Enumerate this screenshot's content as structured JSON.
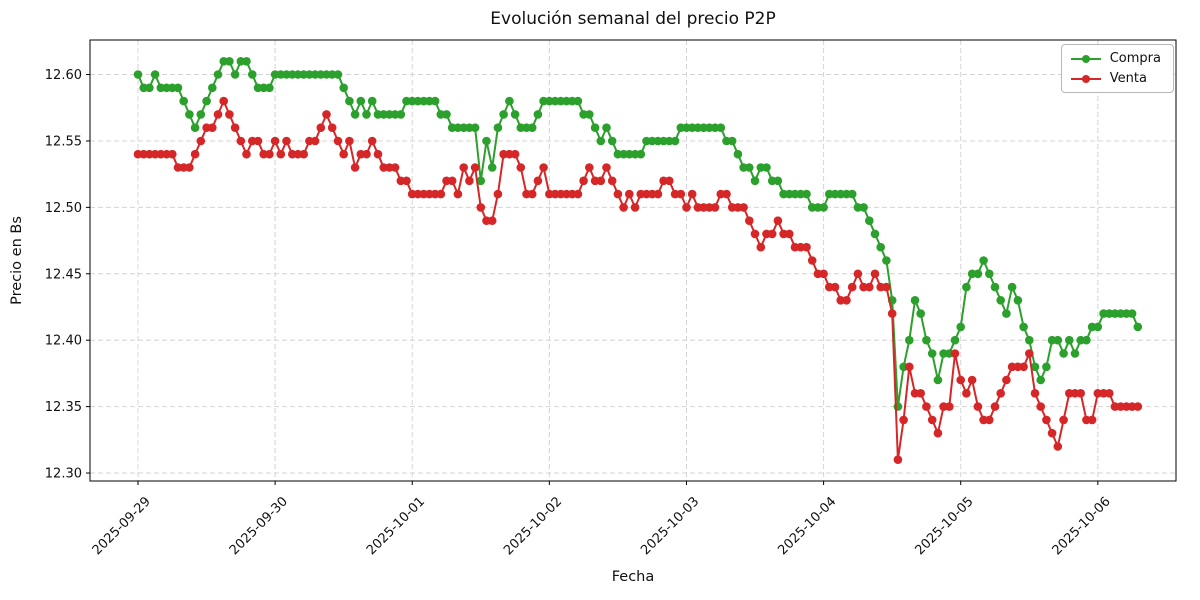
{
  "chart_data": {
    "type": "line",
    "title": "Evolución semanal del precio P2P",
    "xlabel": "Fecha",
    "ylabel": "Precio en Bs",
    "grid": true,
    "grid_style": "dashed",
    "legend_position": "upper right",
    "marker": "o",
    "x_tick_labels": [
      "2025-09-29",
      "2025-09-30",
      "2025-10-01",
      "2025-10-02",
      "2025-10-03",
      "2025-10-04",
      "2025-10-05",
      "2025-10-06"
    ],
    "x_start": "2025-09-29 00:00",
    "x_interval_hours": 1,
    "xlim_days": [
      -0.35,
      7.57
    ],
    "ylim": [
      12.294,
      12.626
    ],
    "yticks": [
      12.3,
      12.35,
      12.4,
      12.45,
      12.5,
      12.55,
      12.6
    ],
    "series": [
      {
        "name": "Compra",
        "color": "#2ca02c",
        "values": [
          12.6,
          12.59,
          12.59,
          12.6,
          12.59,
          12.59,
          12.59,
          12.59,
          12.58,
          12.57,
          12.56,
          12.57,
          12.58,
          12.59,
          12.6,
          12.61,
          12.61,
          12.6,
          12.61,
          12.61,
          12.6,
          12.59,
          12.59,
          12.59,
          12.6,
          12.6,
          12.6,
          12.6,
          12.6,
          12.6,
          12.6,
          12.6,
          12.6,
          12.6,
          12.6,
          12.6,
          12.59,
          12.58,
          12.57,
          12.58,
          12.57,
          12.58,
          12.57,
          12.57,
          12.57,
          12.57,
          12.57,
          12.58,
          12.58,
          12.58,
          12.58,
          12.58,
          12.58,
          12.57,
          12.57,
          12.56,
          12.56,
          12.56,
          12.56,
          12.56,
          12.52,
          12.55,
          12.53,
          12.56,
          12.57,
          12.58,
          12.57,
          12.56,
          12.56,
          12.56,
          12.57,
          12.58,
          12.58,
          12.58,
          12.58,
          12.58,
          12.58,
          12.58,
          12.57,
          12.57,
          12.56,
          12.55,
          12.56,
          12.55,
          12.54,
          12.54,
          12.54,
          12.54,
          12.54,
          12.55,
          12.55,
          12.55,
          12.55,
          12.55,
          12.55,
          12.56,
          12.56,
          12.56,
          12.56,
          12.56,
          12.56,
          12.56,
          12.56,
          12.55,
          12.55,
          12.54,
          12.53,
          12.53,
          12.52,
          12.53,
          12.53,
          12.52,
          12.52,
          12.51,
          12.51,
          12.51,
          12.51,
          12.51,
          12.5,
          12.5,
          12.5,
          12.51,
          12.51,
          12.51,
          12.51,
          12.51,
          12.5,
          12.5,
          12.49,
          12.48,
          12.47,
          12.46,
          12.43,
          12.35,
          12.38,
          12.4,
          12.43,
          12.42,
          12.4,
          12.39,
          12.37,
          12.39,
          12.39,
          12.4,
          12.41,
          12.44,
          12.45,
          12.45,
          12.46,
          12.45,
          12.44,
          12.43,
          12.42,
          12.44,
          12.43,
          12.41,
          12.4,
          12.38,
          12.37,
          12.38,
          12.4,
          12.4,
          12.39,
          12.4,
          12.39,
          12.4,
          12.4,
          12.41,
          12.41,
          12.42,
          12.42,
          12.42,
          12.42,
          12.42,
          12.42,
          12.41
        ]
      },
      {
        "name": "Venta",
        "color": "#d62728",
        "values": [
          12.54,
          12.54,
          12.54,
          12.54,
          12.54,
          12.54,
          12.54,
          12.53,
          12.53,
          12.53,
          12.54,
          12.55,
          12.56,
          12.56,
          12.57,
          12.58,
          12.57,
          12.56,
          12.55,
          12.54,
          12.55,
          12.55,
          12.54,
          12.54,
          12.55,
          12.54,
          12.55,
          12.54,
          12.54,
          12.54,
          12.55,
          12.55,
          12.56,
          12.57,
          12.56,
          12.55,
          12.54,
          12.55,
          12.53,
          12.54,
          12.54,
          12.55,
          12.54,
          12.53,
          12.53,
          12.53,
          12.52,
          12.52,
          12.51,
          12.51,
          12.51,
          12.51,
          12.51,
          12.51,
          12.52,
          12.52,
          12.51,
          12.53,
          12.52,
          12.53,
          12.5,
          12.49,
          12.49,
          12.51,
          12.54,
          12.54,
          12.54,
          12.53,
          12.51,
          12.51,
          12.52,
          12.53,
          12.51,
          12.51,
          12.51,
          12.51,
          12.51,
          12.51,
          12.52,
          12.53,
          12.52,
          12.52,
          12.53,
          12.52,
          12.51,
          12.5,
          12.51,
          12.5,
          12.51,
          12.51,
          12.51,
          12.51,
          12.52,
          12.52,
          12.51,
          12.51,
          12.5,
          12.51,
          12.5,
          12.5,
          12.5,
          12.5,
          12.51,
          12.51,
          12.5,
          12.5,
          12.5,
          12.49,
          12.48,
          12.47,
          12.48,
          12.48,
          12.49,
          12.48,
          12.48,
          12.47,
          12.47,
          12.47,
          12.46,
          12.45,
          12.45,
          12.44,
          12.44,
          12.43,
          12.43,
          12.44,
          12.45,
          12.44,
          12.44,
          12.45,
          12.44,
          12.44,
          12.42,
          12.31,
          12.34,
          12.38,
          12.36,
          12.36,
          12.35,
          12.34,
          12.33,
          12.35,
          12.35,
          12.39,
          12.37,
          12.36,
          12.37,
          12.35,
          12.34,
          12.34,
          12.35,
          12.36,
          12.37,
          12.38,
          12.38,
          12.38,
          12.39,
          12.36,
          12.35,
          12.34,
          12.33,
          12.32,
          12.34,
          12.36,
          12.36,
          12.36,
          12.34,
          12.34,
          12.36,
          12.36,
          12.36,
          12.35,
          12.35,
          12.35,
          12.35,
          12.35
        ]
      }
    ]
  }
}
